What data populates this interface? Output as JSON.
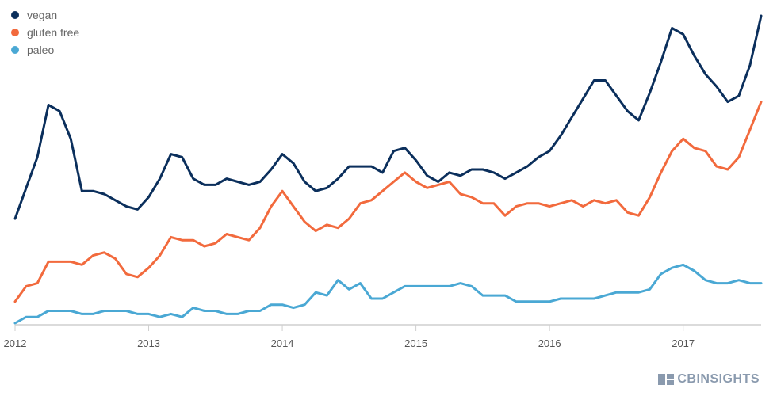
{
  "legend": {
    "items": [
      {
        "label": "vegan",
        "color": "#0b2f5c"
      },
      {
        "label": "gluten free",
        "color": "#f26a3d"
      },
      {
        "label": "paleo",
        "color": "#4aa8d4"
      }
    ]
  },
  "brand": {
    "label": "CBINSIGHTS",
    "icon": "cb-logo-icon"
  },
  "chart_data": {
    "type": "line",
    "title": "",
    "xlabel": "",
    "ylabel": "",
    "legend_position": "top-left",
    "grid": false,
    "x_start": "2012-01",
    "x_step": "month",
    "x_ticks": [
      "2012",
      "2013",
      "2014",
      "2015",
      "2016",
      "2017"
    ],
    "ylim": [
      0,
      100
    ],
    "series": [
      {
        "name": "vegan",
        "color": "#0b2f5c",
        "values": [
          34,
          44,
          54,
          71,
          69,
          60,
          43,
          43,
          42,
          40,
          38,
          37,
          41,
          47,
          55,
          54,
          47,
          45,
          45,
          47,
          46,
          45,
          46,
          50,
          55,
          52,
          46,
          43,
          44,
          47,
          51,
          51,
          51,
          49,
          56,
          57,
          53,
          48,
          46,
          49,
          48,
          50,
          50,
          49,
          47,
          49,
          51,
          54,
          56,
          61,
          67,
          73,
          79,
          79,
          74,
          69,
          66,
          75,
          85,
          96,
          94,
          87,
          81,
          77,
          72,
          74,
          84,
          100
        ]
      },
      {
        "name": "gluten free",
        "color": "#f26a3d",
        "values": [
          7,
          12,
          13,
          20,
          20,
          20,
          19,
          22,
          23,
          21,
          16,
          15,
          18,
          22,
          28,
          27,
          27,
          25,
          26,
          29,
          28,
          27,
          31,
          38,
          43,
          38,
          33,
          30,
          32,
          31,
          34,
          39,
          40,
          43,
          46,
          49,
          46,
          44,
          45,
          46,
          42,
          41,
          39,
          39,
          35,
          38,
          39,
          39,
          38,
          39,
          40,
          38,
          40,
          39,
          40,
          36,
          35,
          41,
          49,
          56,
          60,
          57,
          56,
          51,
          50,
          54,
          63,
          72
        ]
      },
      {
        "name": "paleo",
        "color": "#4aa8d4",
        "values": [
          0,
          2,
          2,
          4,
          4,
          4,
          3,
          3,
          4,
          4,
          4,
          3,
          3,
          2,
          3,
          2,
          5,
          4,
          4,
          3,
          3,
          4,
          4,
          6,
          6,
          5,
          6,
          10,
          9,
          14,
          11,
          13,
          8,
          8,
          10,
          12,
          12,
          12,
          12,
          12,
          13,
          12,
          9,
          9,
          9,
          7,
          7,
          7,
          7,
          8,
          8,
          8,
          8,
          9,
          10,
          10,
          10,
          11,
          16,
          18,
          19,
          17,
          14,
          13,
          13,
          14,
          13,
          13
        ]
      }
    ]
  }
}
